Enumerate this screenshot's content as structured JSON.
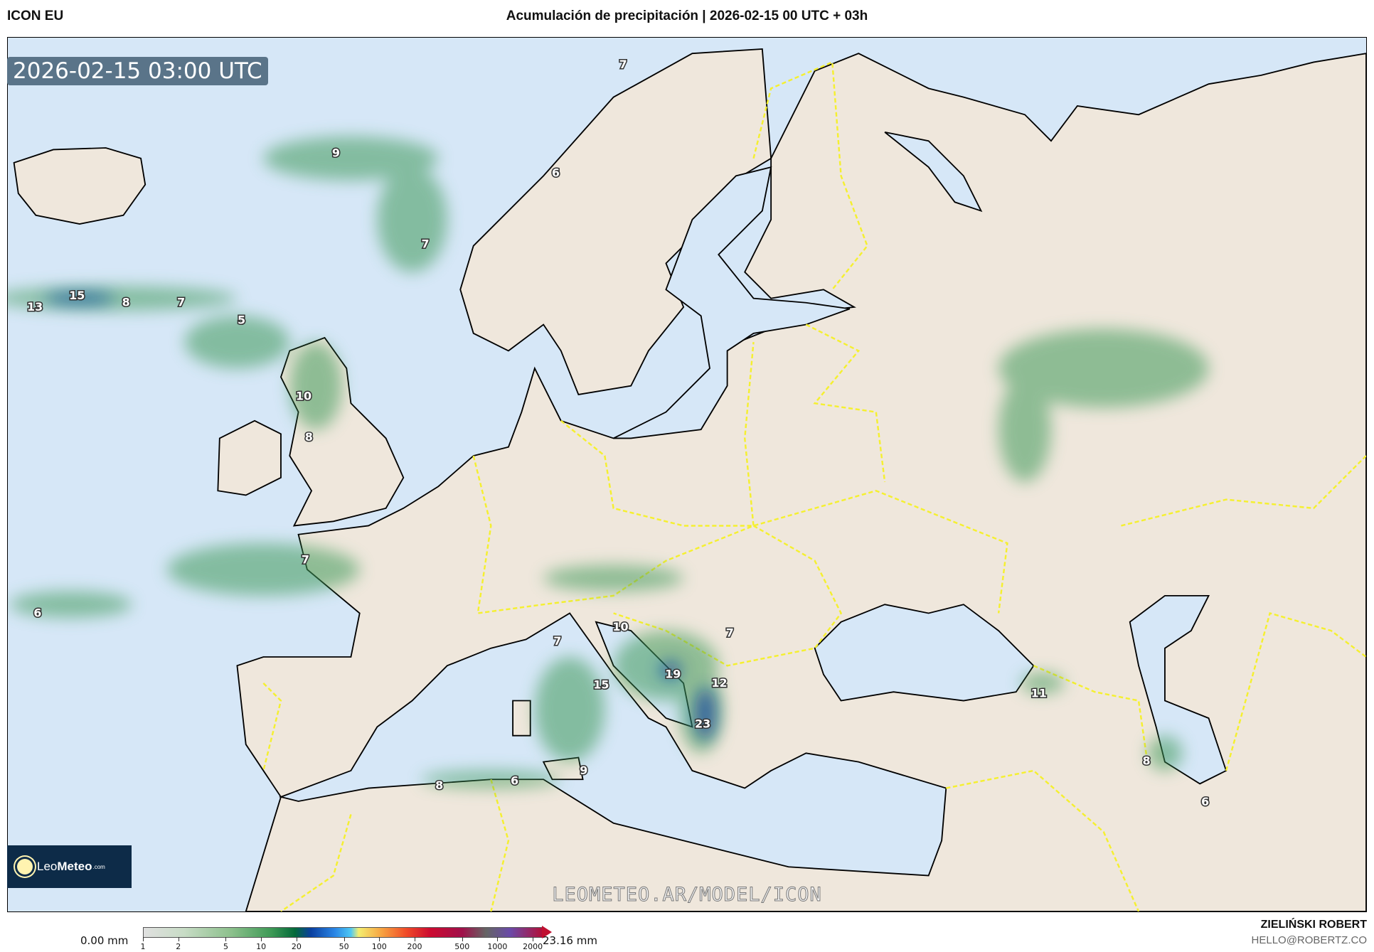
{
  "header": {
    "model": "ICON EU",
    "title": "Acumulación de precipitación | 2026-02-15 00 UTC + 03h"
  },
  "map": {
    "valid_time": "2026-02-15 03:00 UTC",
    "watermark": "LEOMETEO.AR/MODEL/ICON",
    "logo_text": {
      "leo": "Leo",
      "meteo": "Meteo",
      "com": ".com"
    },
    "colors": {
      "sea": "#d6e7f7",
      "land": "#efe7dc",
      "coast": "#000000",
      "border": "#f5f030",
      "precip": "#2e8b48"
    },
    "precip_labels": [
      "7",
      "9",
      "6",
      "7",
      "15",
      "13",
      "8",
      "7",
      "5",
      "10",
      "8",
      "7",
      "6",
      "10",
      "7",
      "7",
      "19",
      "12",
      "15",
      "23",
      "6",
      "9",
      "8",
      "11",
      "8",
      "6"
    ]
  },
  "legend": {
    "min_label": "0.00 mm",
    "max_label": "23.16 mm",
    "ticks": [
      "1",
      "2",
      "5",
      "10",
      "20",
      "50",
      "100",
      "200",
      "500",
      "1000",
      "2000"
    ]
  },
  "credits": {
    "author": "ZIELIŃSKI ROBERT",
    "email": "HELLO@ROBERTZ.CO"
  }
}
